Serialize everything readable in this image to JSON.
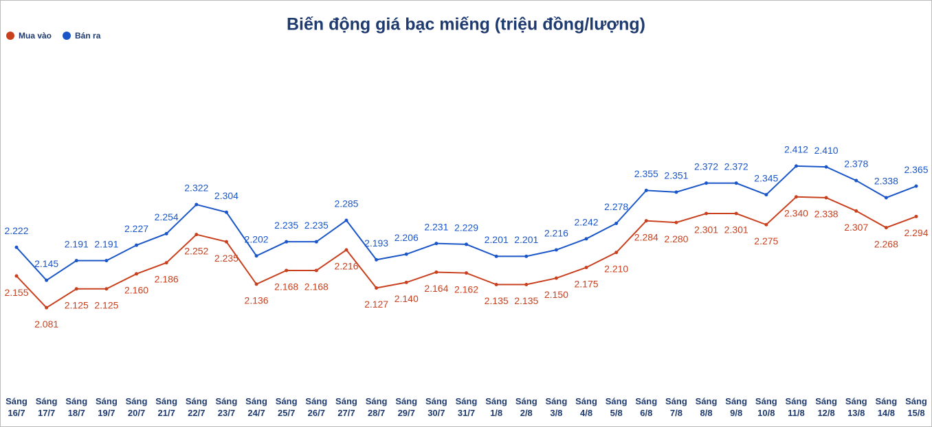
{
  "chart_data": {
    "type": "line",
    "title": "Biến động giá bạc miếng (triệu đồng/lượng)",
    "categories": [
      "Sáng 16/7",
      "Sáng 17/7",
      "Sáng 18/7",
      "Sáng 19/7",
      "Sáng 20/7",
      "Sáng 21/7",
      "Sáng 22/7",
      "Sáng 23/7",
      "Sáng 24/7",
      "Sáng 25/7",
      "Sáng 26/7",
      "Sáng 27/7",
      "Sáng 28/7",
      "Sáng 29/7",
      "Sáng 30/7",
      "Sáng 31/7",
      "Sáng 1/8",
      "Sáng 2/8",
      "Sáng 3/8",
      "Sáng 4/8",
      "Sáng 5/8",
      "Sáng 6/8",
      "Sáng 7/8",
      "Sáng 8/8",
      "Sáng 9/8",
      "Sáng 10/8",
      "Sáng 11/8",
      "Sáng 12/8",
      "Sáng 13/8",
      "Sáng 14/8",
      "Sáng 15/8"
    ],
    "series": [
      {
        "name": "Mua vào",
        "color": "#c8401e",
        "values": [
          2.155,
          2.081,
          2.125,
          2.125,
          2.16,
          2.186,
          2.252,
          2.235,
          2.136,
          2.168,
          2.168,
          2.216,
          2.127,
          2.14,
          2.164,
          2.162,
          2.135,
          2.135,
          2.15,
          2.175,
          2.21,
          2.284,
          2.28,
          2.301,
          2.301,
          2.275,
          2.34,
          2.338,
          2.307,
          2.268,
          2.294
        ],
        "value_labels": [
          "2.155",
          "2.081",
          "2.125",
          "2.125",
          "2.160",
          "2.186",
          "2.252",
          "2.235",
          "2.136",
          "2.168",
          "2.168",
          "2.216",
          "2.127",
          "2.140",
          "2.164",
          "2.162",
          "2.135",
          "2.135",
          "2.150",
          "2.175",
          "2.210",
          "2.284",
          "2.280",
          "2.301",
          "2.301",
          "2.275",
          "2.340",
          "2.338",
          "2.307",
          "2.268",
          "2.294"
        ]
      },
      {
        "name": "Bán ra",
        "color": "#1a56c8",
        "values": [
          2.222,
          2.145,
          2.191,
          2.191,
          2.227,
          2.254,
          2.322,
          2.304,
          2.202,
          2.235,
          2.235,
          2.285,
          2.193,
          2.206,
          2.231,
          2.229,
          2.201,
          2.201,
          2.216,
          2.242,
          2.278,
          2.355,
          2.351,
          2.372,
          2.372,
          2.345,
          2.412,
          2.41,
          2.378,
          2.338,
          2.365
        ],
        "value_labels": [
          "2.222",
          "2.145",
          "2.191",
          "2.191",
          "2.227",
          "2.254",
          "2.322",
          "2.304",
          "2.202",
          "2.235",
          "2.235",
          "2.285",
          "2.193",
          "2.206",
          "2.231",
          "2.229",
          "2.201",
          "2.201",
          "2.216",
          "2.242",
          "2.278",
          "2.355",
          "2.351",
          "2.372",
          "2.372",
          "2.345",
          "2.412",
          "2.410",
          "2.378",
          "2.338",
          "2.365"
        ]
      }
    ],
    "ylim": [
      1.9,
      2.5
    ]
  }
}
